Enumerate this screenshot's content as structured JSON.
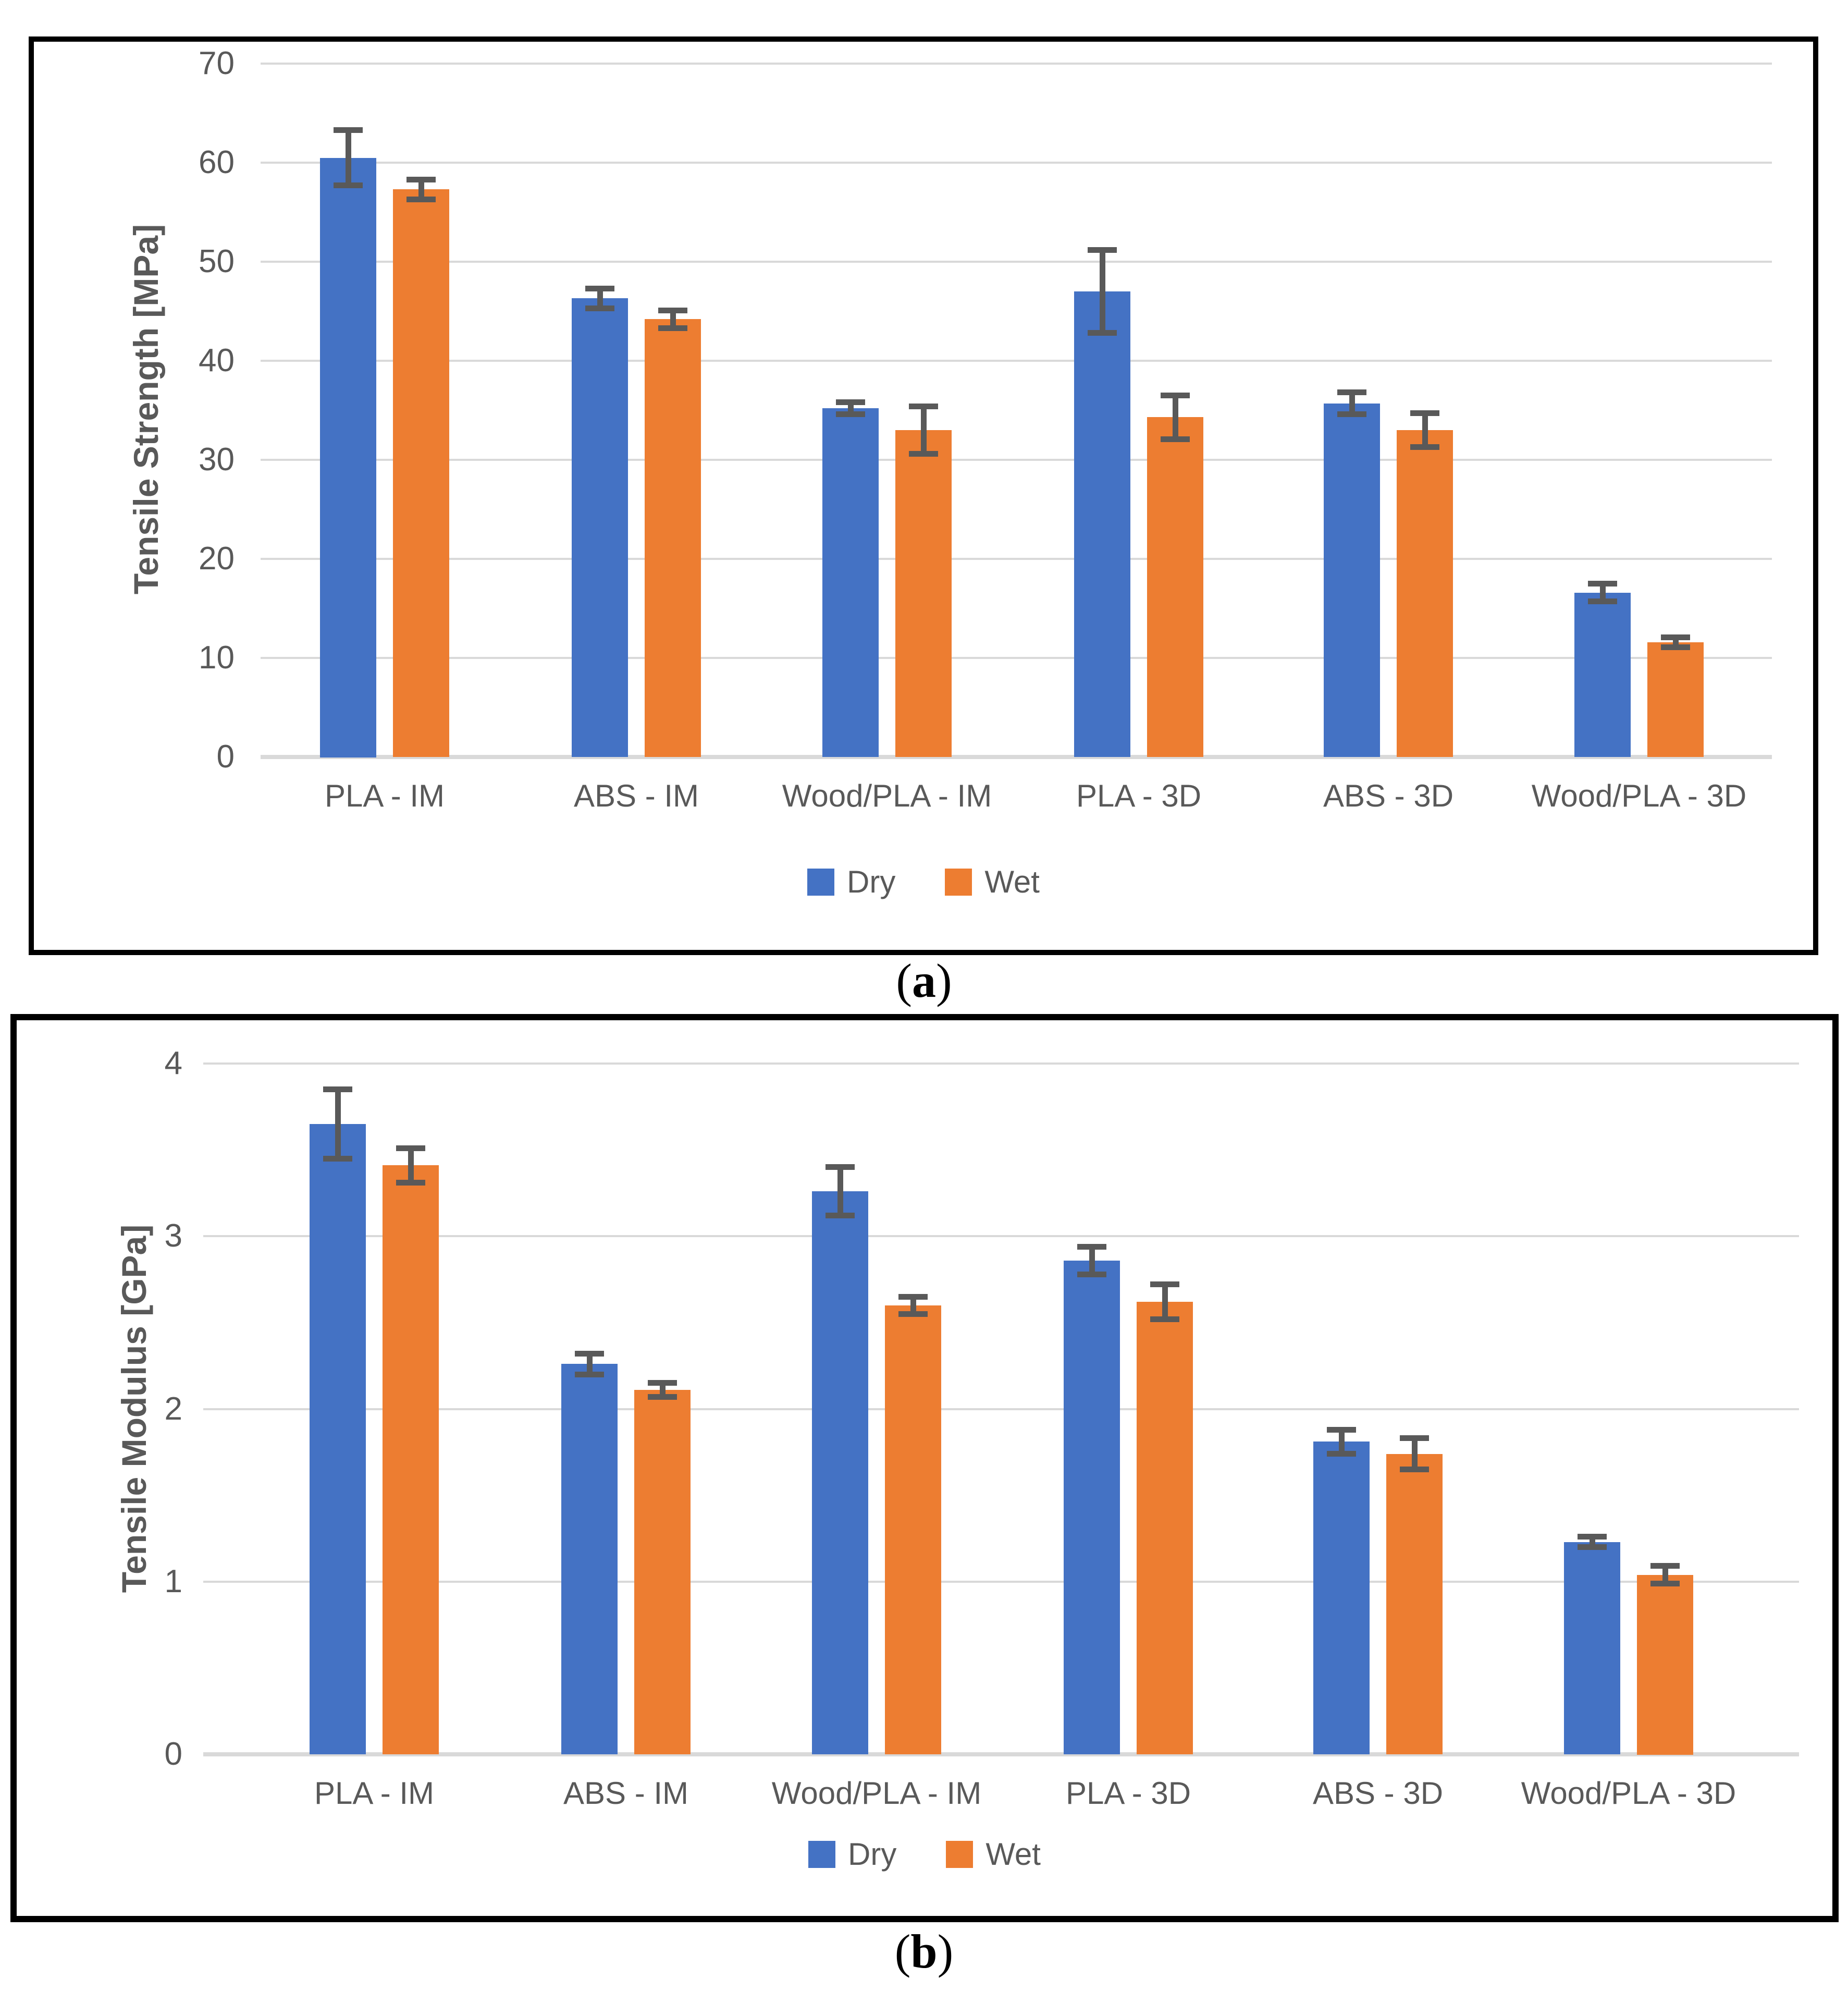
{
  "colors": {
    "dry": "#4472C4",
    "wet": "#ED7D31",
    "error_bar": "#595959",
    "gridline": "#D9D9D9",
    "axis_text": "#595959",
    "border": "#000000",
    "background": "#ffffff"
  },
  "captions": {
    "a": {
      "open": "(",
      "letter": "a",
      "close": ")"
    },
    "b": {
      "open": "(",
      "letter": "b",
      "close": ")"
    }
  },
  "chart_data": [
    {
      "id": "tensile-strength",
      "type": "bar",
      "title": "",
      "xlabel": "",
      "ylabel": "Tensile Strength [MPa]",
      "ylim": [
        0,
        70
      ],
      "yticks": [
        0,
        10,
        20,
        30,
        40,
        50,
        60,
        70
      ],
      "grid": true,
      "legend_position": "bottom",
      "categories": [
        "PLA - IM",
        "ABS - IM",
        "Wood/PLA - IM",
        "PLA - 3D",
        "ABS - 3D",
        "Wood/PLA - 3D"
      ],
      "series": [
        {
          "name": "Dry",
          "color": "#4472C4",
          "values": [
            60.5,
            46.3,
            35.2,
            47.0,
            35.7,
            16.6
          ],
          "errors": [
            2.8,
            1.0,
            0.6,
            4.2,
            1.1,
            0.9
          ]
        },
        {
          "name": "Wet",
          "color": "#ED7D31",
          "values": [
            57.3,
            44.2,
            33.0,
            34.3,
            33.0,
            11.6
          ],
          "errors": [
            1.0,
            0.9,
            2.4,
            2.2,
            1.7,
            0.5
          ]
        }
      ]
    },
    {
      "id": "tensile-modulus",
      "type": "bar",
      "title": "",
      "xlabel": "",
      "ylabel": "Tensile Modulus [GPa]",
      "ylim": [
        0,
        4
      ],
      "yticks": [
        0,
        1,
        2,
        3,
        4
      ],
      "grid": true,
      "legend_position": "bottom",
      "categories": [
        "PLA - IM",
        "ABS - IM",
        "Wood/PLA - IM",
        "PLA - 3D",
        "ABS - 3D",
        "Wood/PLA - 3D"
      ],
      "series": [
        {
          "name": "Dry",
          "color": "#4472C4",
          "values": [
            3.65,
            2.26,
            3.26,
            2.86,
            1.81,
            1.23
          ],
          "errors": [
            0.2,
            0.06,
            0.14,
            0.08,
            0.07,
            0.03
          ]
        },
        {
          "name": "Wet",
          "color": "#ED7D31",
          "values": [
            3.41,
            2.11,
            2.6,
            2.62,
            1.74,
            1.04
          ],
          "errors": [
            0.1,
            0.04,
            0.05,
            0.1,
            0.09,
            0.05
          ]
        }
      ]
    }
  ]
}
